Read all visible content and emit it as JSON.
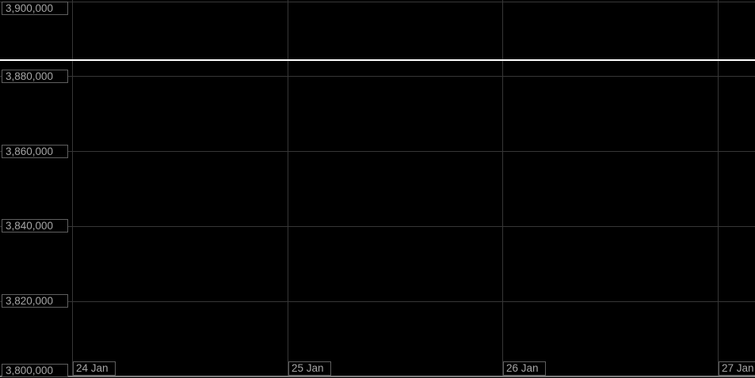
{
  "chart": {
    "colors": {
      "background": "#000000",
      "grid": "#373737",
      "tick_box_border": "#5f5f5f",
      "tick_box_background": "#000000",
      "tick_text": "#a6a6a6",
      "x_axis_line": "#7e7e7e",
      "price_line": "#ffffff"
    },
    "y_axis": {
      "tick_labels": [
        "3,900,000",
        "3,880,000",
        "3,860,000",
        "3,840,000",
        "3,820,000",
        "3,800,000"
      ]
    },
    "x_axis": {
      "tick_labels": [
        "24 Jan",
        "25 Jan",
        "26 Jan",
        "27 Jan"
      ]
    }
  },
  "chart_data": {
    "type": "line",
    "title": "",
    "xlabel": "",
    "ylabel": "",
    "x_tick_labels": [
      "24 Jan",
      "25 Jan",
      "26 Jan",
      "27 Jan"
    ],
    "y_tick_values": [
      3900000,
      3880000,
      3860000,
      3840000,
      3820000,
      3800000
    ],
    "y_tick_labels": [
      "3,900,000",
      "3,880,000",
      "3,860,000",
      "3,840,000",
      "3,820,000",
      "3,800,000"
    ],
    "ylim": [
      3800000,
      3900000
    ],
    "grid": true,
    "legend": false,
    "series": [],
    "reference_line": {
      "value": 3884200,
      "color": "#ffffff",
      "orientation": "horizontal"
    },
    "note": "Plot area shows no visible data series; only a white horizontal current-price line across the full chart width."
  }
}
